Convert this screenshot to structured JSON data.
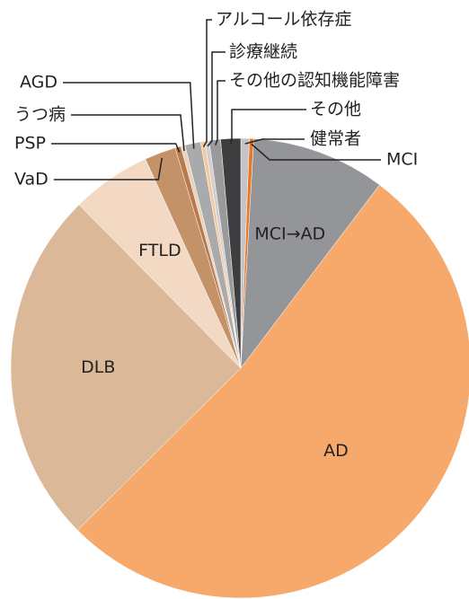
{
  "chart_data": {
    "type": "pie",
    "categories": [
      "健常者",
      "MCI",
      "MCI→AD",
      "AD",
      "DLB",
      "FTLD",
      "VaD",
      "PSP",
      "うつ病",
      "AGD",
      "アルコール依存症",
      "診療継続",
      "その他の認知機能障害",
      "その他"
    ],
    "values": [
      0.6,
      0.3,
      9.4,
      52.2,
      25,
      5.6,
      2.2,
      0.4,
      0.3,
      1.1,
      0.3,
      0.3,
      0.8,
      1.4
    ],
    "colors": [
      "#c4c4c6",
      "#e8772a",
      "#939598",
      "#f6a96b",
      "#dab898",
      "#f3d9c4",
      "#c49269",
      "#b87a4a",
      "#ead3bd",
      "#a9aaac",
      "#f5c9a0",
      "#cfcfd1",
      "#9a9a9c",
      "#3e3e40"
    ]
  }
}
